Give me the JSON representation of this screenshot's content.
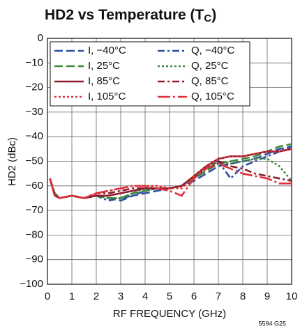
{
  "chart_data": {
    "type": "line",
    "title": "HD2 vs Temperature (T",
    "title_subscript": "C",
    "title_end": ")",
    "xlabel": "RF FREQUENCY (GHz)",
    "ylabel": "HD2 (dBc)",
    "footnote": "5594 G25",
    "x": [
      0.1,
      0.3,
      0.5,
      1,
      1.5,
      2,
      2.5,
      3,
      3.5,
      4,
      4.5,
      5,
      5.5,
      6,
      6.5,
      7,
      7.5,
      8,
      8.5,
      9,
      9.5,
      10
    ],
    "xlim": [
      0,
      10
    ],
    "xticks": [
      0,
      1,
      2,
      3,
      4,
      5,
      6,
      7,
      8,
      9,
      10
    ],
    "ylim": [
      -100,
      0
    ],
    "yticks": [
      {
        "value": -100,
        "label": "−100"
      },
      {
        "value": -90,
        "label": "−90"
      },
      {
        "value": -80,
        "label": "−80"
      },
      {
        "value": -70,
        "label": "−70"
      },
      {
        "value": -60,
        "label": "−60"
      },
      {
        "value": -50,
        "label": "−50"
      },
      {
        "value": -40,
        "label": "−40"
      },
      {
        "value": -30,
        "label": "−30"
      },
      {
        "value": -20,
        "label": "−20"
      },
      {
        "value": -10,
        "label": "−10"
      },
      0
    ],
    "grid": true,
    "legend": "upper left",
    "series": [
      {
        "name": "I, −40°C",
        "color": "#2e4fa0",
        "style": "dashed",
        "values": [
          -57,
          -63,
          -65,
          -64,
          -65,
          -64,
          -65,
          -66,
          -64,
          -63,
          -62,
          -61,
          -60,
          -58,
          -55,
          -52,
          -51,
          -50,
          -49,
          -47,
          -45,
          -44
        ]
      },
      {
        "name": "Q, −40°C",
        "color": "#2e4fa0",
        "style": "dash-dot",
        "values": [
          -57,
          -63,
          -65,
          -64,
          -65,
          -64,
          -66,
          -65,
          -64,
          -62,
          -61,
          -61,
          -60,
          -57,
          -53,
          -50,
          -57,
          -52,
          -50,
          -48,
          -46,
          -44
        ]
      },
      {
        "name": "I, 25°C",
        "color": "#3a8a3a",
        "style": "dashed",
        "values": [
          -57,
          -63,
          -65,
          -64,
          -65,
          -64,
          -65,
          -65,
          -63,
          -62,
          -61,
          -61,
          -60,
          -57,
          -54,
          -51,
          -50,
          -49,
          -48,
          -46,
          -44,
          -43
        ]
      },
      {
        "name": "Q, 25°C",
        "color": "#3a8a3a",
        "style": "dotted",
        "values": [
          -57,
          -64,
          -65,
          -64,
          -65,
          -64,
          -65,
          -65,
          -63,
          -61,
          -61,
          -61,
          -60,
          -57,
          -53,
          -50,
          -51,
          -50,
          -49,
          -49,
          -52,
          -58
        ]
      },
      {
        "name": "I, 85°C",
        "color": "#8b1a2b",
        "style": "solid",
        "values": [
          -57,
          -64,
          -65,
          -64,
          -65,
          -64,
          -64,
          -63,
          -62,
          -61,
          -61,
          -61,
          -60,
          -56,
          -52,
          -49,
          -48,
          -48,
          -47,
          -46,
          -46,
          -45
        ]
      },
      {
        "name": "Q, 85°C",
        "color": "#8b1a2b",
        "style": "dash-dot",
        "values": [
          -57,
          -64,
          -65,
          -64,
          -65,
          -63,
          -63,
          -62,
          -61,
          -61,
          -61,
          -61,
          -60,
          -56,
          -53,
          -50,
          -52,
          -53,
          -55,
          -56,
          -57,
          -58
        ]
      },
      {
        "name": "I, 105°C",
        "color": "#e0303a",
        "style": "dotted",
        "values": [
          -57,
          -64,
          -65,
          -64,
          -65,
          -63,
          -62,
          -61,
          -60,
          -60,
          -60,
          -61,
          -61,
          -56,
          -52,
          -49,
          -48,
          -48,
          -47,
          -46,
          -46,
          -45
        ]
      },
      {
        "name": "Q, 105°C",
        "color": "#e0303a",
        "style": "long-dash-dot",
        "values": [
          -57,
          -64,
          -65,
          -64,
          -65,
          -63,
          -62,
          -61,
          -60,
          -60,
          -61,
          -62,
          -64,
          -57,
          -53,
          -51,
          -53,
          -55,
          -56,
          -57,
          -59,
          -59
        ]
      }
    ]
  }
}
